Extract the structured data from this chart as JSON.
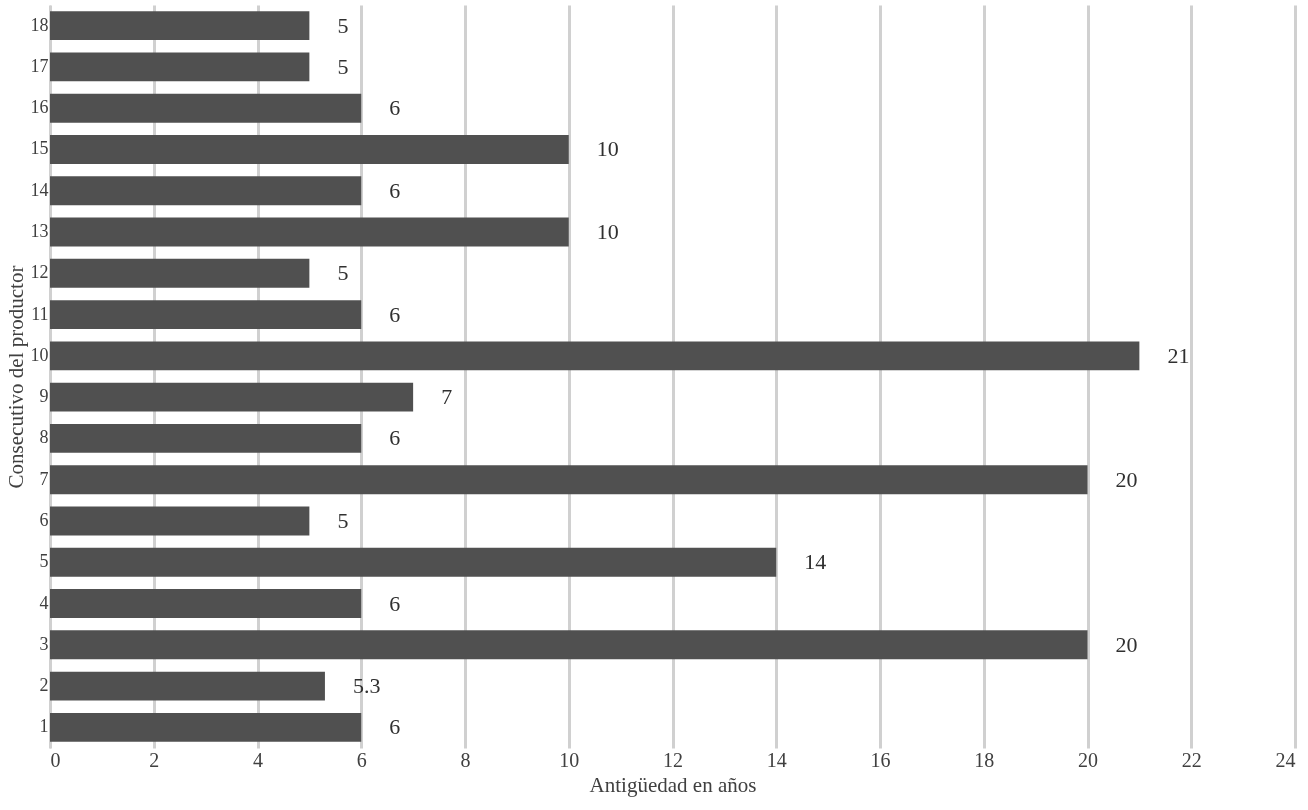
{
  "chart_data": {
    "type": "bar",
    "orientation": "horizontal",
    "xlabel": "Antigüedad en años",
    "ylabel": "Consecutivo del productor",
    "categories": [
      "18",
      "17",
      "16",
      "15",
      "14",
      "13",
      "12",
      "11",
      "10",
      "9",
      "8",
      "7",
      "6",
      "5",
      "4",
      "3",
      "2",
      "1"
    ],
    "values": [
      5,
      5,
      6,
      10,
      6,
      10,
      5,
      6,
      21,
      7,
      6,
      20,
      5,
      14,
      6,
      20,
      5.3,
      6
    ],
    "color": "#505050",
    "xlim": [
      0,
      24
    ],
    "xticks": [
      0,
      2,
      4,
      6,
      8,
      10,
      12,
      14,
      16,
      18,
      20,
      22,
      24
    ],
    "grid": "x",
    "data_labels": true
  }
}
